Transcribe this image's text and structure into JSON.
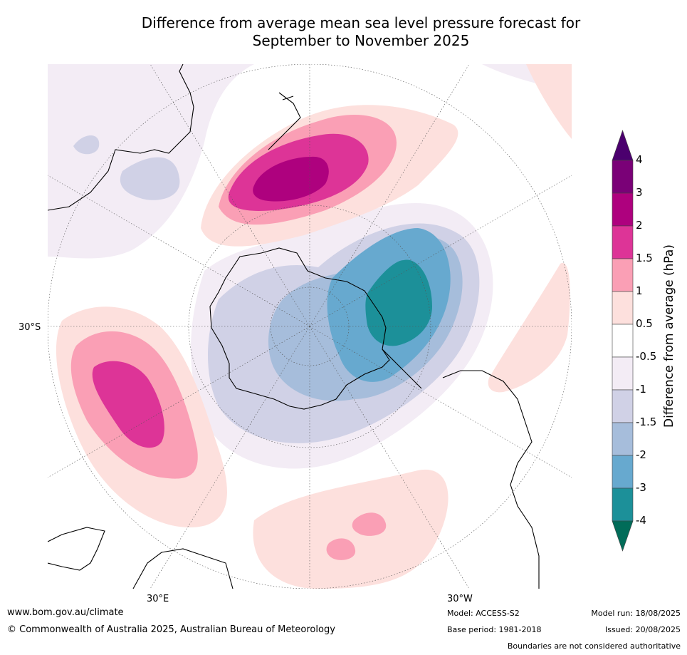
{
  "title_line1": "Difference from average mean sea level pressure forecast for",
  "title_line2": "September to November 2025",
  "labels": {
    "lat_30s": "30°S",
    "lon_30e": "30°E",
    "lon_30w": "30°W"
  },
  "colorbar": {
    "title": "Difference from average (hPa)",
    "ticks": [
      "4",
      "3",
      "2",
      "1.5",
      "1",
      "0.5",
      "-0.5",
      "-1",
      "-1.5",
      "-2",
      "-3",
      "-4"
    ],
    "colors": {
      "gt4": "#4b006e",
      "3_4": "#7a0177",
      "2_3": "#ae017e",
      "1.5_2": "#dd3497",
      "1_1.5": "#fa9fb5",
      "0.5_1": "#fde0dd",
      "neutral": "#ffffff",
      "m1_m0.5": "#f3ecf5",
      "m1.5_m1": "#d0d1e6",
      "m2_m1.5": "#a6bddb",
      "m3_m2": "#67a9cf",
      "m4_m3": "#1c9099",
      "lt_m4": "#016c59"
    }
  },
  "footer": {
    "website": "www.bom.gov.au/climate",
    "copyright": "© Commonwealth of Australia 2025, Australian Bureau of Meteorology",
    "model": "Model: ACCESS-S2",
    "base_period": "Base period: 1981-2018",
    "model_run": "Model run: 18/08/2025",
    "issued": "Issued: 20/08/2025",
    "disclaimer": "Boundaries are not considered authoritative"
  }
}
